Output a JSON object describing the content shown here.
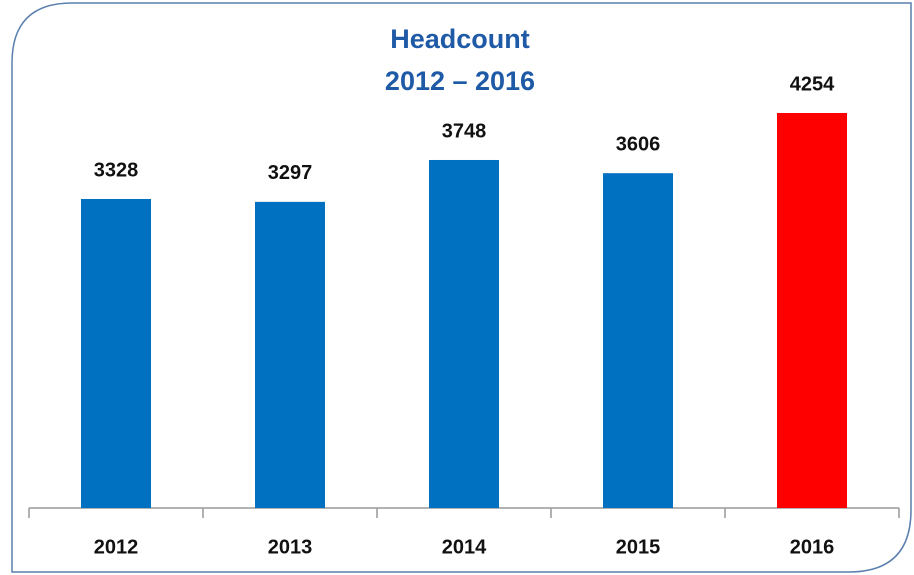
{
  "chart_data": {
    "type": "bar",
    "title": "Headcount",
    "subtitle": "2012 – 2016",
    "categories": [
      "2012",
      "2013",
      "2014",
      "2015",
      "2016"
    ],
    "values": [
      3328,
      3297,
      3748,
      3606,
      4254
    ],
    "colors": [
      "#0070c0",
      "#0070c0",
      "#0070c0",
      "#0070c0",
      "#ff0000"
    ]
  }
}
